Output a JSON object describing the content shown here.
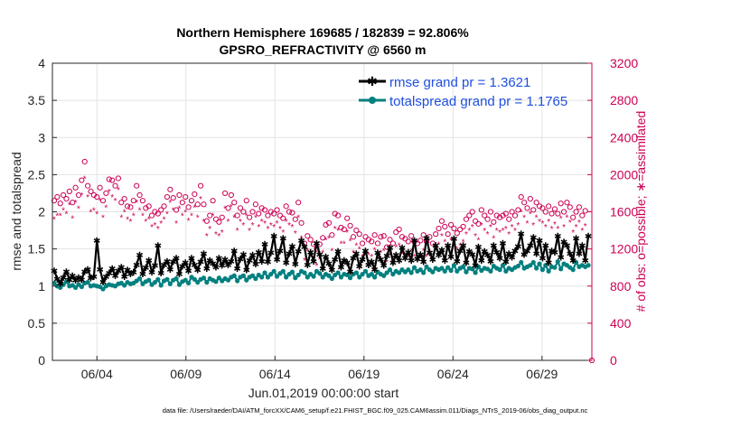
{
  "chart_data": {
    "type": "line",
    "title_line1": "Northern Hemisphere 169685 / 182839 = 92.806%",
    "title_line2": "GPSRO_REFRACTIVITY @ 6560 m",
    "xlabel": "Jun.01,2019 00:00:00 start",
    "ylabel_left": "rmse and totalspread",
    "ylabel_right": "# of obs: o=possible; ∗=assimilated",
    "footer": "data file: /Users/raeder/DAI/ATM_forcXX/CAM6_setup/f.e21.FHIST_BGC.f09_025.CAM6assim.011/Diags_NTrS_2019-06/obs_diag_output.nc",
    "xlim": [
      1.5,
      31.8
    ],
    "ylim_left": [
      0,
      4
    ],
    "ylim_right": [
      0,
      3200
    ],
    "x_tick_values": [
      4,
      9,
      14,
      19,
      24,
      29
    ],
    "x_tick_labels": [
      "06/04",
      "06/09",
      "06/14",
      "06/19",
      "06/24",
      "06/29"
    ],
    "y_tick_left": [
      "0",
      "0.5",
      "1",
      "1.5",
      "2",
      "2.5",
      "3",
      "3.5",
      "4"
    ],
    "y_tick_right": [
      "0",
      "400",
      "800",
      "1200",
      "1600",
      "2000",
      "2400",
      "2800",
      "3200"
    ],
    "colors": {
      "rmse": "#000000",
      "spread": "#00807f",
      "obs": "#cc0055",
      "legend_text": "#1f4fe0"
    },
    "series": [
      {
        "name": "rmse grand pr = 1.3621",
        "axis": "left",
        "values": [
          1.21,
          1.1,
          1.04,
          1.12,
          1.2,
          1.09,
          1.14,
          1.08,
          1.12,
          1.09,
          1.2,
          1.23,
          1.11,
          1.13,
          1.62,
          1.23,
          1.06,
          1.13,
          1.18,
          1.24,
          1.14,
          1.21,
          1.26,
          1.13,
          1.22,
          1.17,
          1.19,
          1.29,
          1.42,
          1.17,
          1.25,
          1.35,
          1.19,
          1.28,
          1.55,
          1.18,
          1.29,
          1.34,
          1.23,
          1.33,
          1.38,
          1.17,
          1.27,
          1.32,
          1.21,
          1.38,
          1.29,
          1.22,
          1.33,
          1.44,
          1.24,
          1.35,
          1.31,
          1.26,
          1.38,
          1.28,
          1.36,
          1.29,
          1.34,
          1.48,
          1.24,
          1.37,
          1.43,
          1.22,
          1.35,
          1.42,
          1.3,
          1.46,
          1.34,
          1.57,
          1.33,
          1.45,
          1.68,
          1.36,
          1.48,
          1.65,
          1.32,
          1.44,
          1.54,
          1.3,
          1.47,
          1.62,
          1.53,
          1.29,
          1.46,
          1.34,
          1.58,
          1.43,
          1.24,
          1.4,
          1.31,
          1.22,
          1.36,
          1.47,
          1.26,
          1.35,
          1.32,
          1.2,
          1.38,
          1.44,
          1.27,
          1.36,
          1.48,
          1.29,
          1.33,
          1.23,
          1.45,
          1.36,
          1.28,
          1.41,
          1.52,
          1.32,
          1.42,
          1.35,
          1.52,
          1.38,
          1.46,
          1.35,
          1.62,
          1.37,
          1.43,
          1.33,
          1.65,
          1.45,
          1.36,
          1.55,
          1.42,
          1.49,
          1.35,
          1.55,
          1.4,
          1.64,
          1.34,
          1.48,
          1.55,
          1.32,
          1.47,
          1.43,
          1.28,
          1.53,
          1.35,
          1.47,
          1.42,
          1.34,
          1.55,
          1.46,
          1.38,
          1.58,
          1.33,
          1.44,
          1.39,
          1.48,
          1.54,
          1.71,
          1.43,
          1.48,
          1.55,
          1.66,
          1.44,
          1.62,
          1.38,
          1.55,
          1.32,
          1.48,
          1.46,
          1.68,
          1.39,
          1.6,
          1.55,
          1.44,
          1.35,
          1.65,
          1.44,
          1.55,
          1.35,
          1.68
        ]
      },
      {
        "name": "totalspread grand pr = 1.1765",
        "axis": "left",
        "values": [
          1.04,
          1.0,
          0.98,
          1.02,
          1.06,
          1.0,
          1.01,
          0.98,
          1.02,
          0.99,
          1.04,
          1.05,
          1.0,
          1.01,
          1.0,
          0.99,
          0.96,
          1.0,
          1.02,
          1.01,
          1.0,
          1.03,
          1.04,
          1.01,
          1.05,
          1.03,
          1.04,
          1.07,
          1.1,
          1.03,
          1.06,
          1.08,
          1.02,
          1.05,
          1.09,
          1.01,
          1.07,
          1.09,
          1.03,
          1.08,
          1.1,
          1.02,
          1.06,
          1.08,
          1.04,
          1.12,
          1.09,
          1.05,
          1.09,
          1.11,
          1.05,
          1.1,
          1.08,
          1.06,
          1.11,
          1.07,
          1.1,
          1.08,
          1.12,
          1.14,
          1.07,
          1.12,
          1.14,
          1.08,
          1.12,
          1.14,
          1.1,
          1.15,
          1.12,
          1.18,
          1.12,
          1.16,
          1.2,
          1.13,
          1.17,
          1.2,
          1.12,
          1.16,
          1.19,
          1.11,
          1.15,
          1.2,
          1.18,
          1.12,
          1.16,
          1.13,
          1.2,
          1.17,
          1.12,
          1.16,
          1.14,
          1.1,
          1.15,
          1.18,
          1.12,
          1.16,
          1.15,
          1.11,
          1.16,
          1.18,
          1.12,
          1.16,
          1.2,
          1.14,
          1.16,
          1.12,
          1.19,
          1.16,
          1.14,
          1.18,
          1.22,
          1.16,
          1.2,
          1.18,
          1.22,
          1.19,
          1.22,
          1.18,
          1.25,
          1.2,
          1.22,
          1.18,
          1.26,
          1.22,
          1.19,
          1.24,
          1.22,
          1.24,
          1.2,
          1.25,
          1.21,
          1.28,
          1.2,
          1.24,
          1.26,
          1.19,
          1.24,
          1.23,
          1.18,
          1.26,
          1.21,
          1.24,
          1.23,
          1.2,
          1.27,
          1.24,
          1.22,
          1.28,
          1.2,
          1.24,
          1.22,
          1.25,
          1.27,
          1.32,
          1.24,
          1.26,
          1.28,
          1.32,
          1.24,
          1.3,
          1.22,
          1.28,
          1.2,
          1.26,
          1.25,
          1.33,
          1.23,
          1.3,
          1.28,
          1.25,
          1.22,
          1.32,
          1.26,
          1.28,
          1.26,
          1.28
        ]
      },
      {
        "name": "possible",
        "axis": "right",
        "marker": "o",
        "values": [
          1720,
          1760,
          1690,
          1780,
          1740,
          1820,
          1700,
          1860,
          1780,
          1940,
          2140,
          1880,
          1820,
          1780,
          1760,
          1860,
          1720,
          1800,
          1950,
          1940,
          1880,
          1960,
          1700,
          1740,
          1660,
          1650,
          1720,
          1880,
          1780,
          1720,
          1640,
          1660,
          1560,
          1600,
          1580,
          1620,
          1660,
          1760,
          1840,
          1750,
          1620,
          1780,
          1700,
          1760,
          1650,
          1720,
          1790,
          1680,
          1880,
          1680,
          1500,
          1560,
          1720,
          1520,
          1490,
          1540,
          1800,
          1640,
          1780,
          1700,
          1560,
          1640,
          1600,
          1720,
          1540,
          1600,
          1680,
          1580,
          1640,
          1620,
          1560,
          1600,
          1580,
          1620,
          1560,
          1530,
          1660,
          1600,
          1590,
          1520,
          1700,
          1480,
          1260,
          1340,
          1300,
          1250,
          1200,
          1250,
          1320,
          1460,
          1480,
          1350,
          1580,
          1560,
          1430,
          1410,
          1530,
          1450,
          1330,
          1400,
          1360,
          1260,
          1330,
          1300,
          1280,
          1350,
          1260,
          1330,
          1340,
          1220,
          1300,
          1260,
          1380,
          1410,
          1330,
          1310,
          1280,
          1340,
          1280,
          1260,
          1290,
          1350,
          1280,
          1330,
          1260,
          1360,
          1420,
          1500,
          1440,
          1360,
          1460,
          1420,
          1370,
          1410,
          1440,
          1520,
          1560,
          1600,
          1500,
          1470,
          1620,
          1560,
          1520,
          1600,
          1490,
          1560,
          1540,
          1560,
          1580,
          1520,
          1600,
          1560,
          1620,
          1760,
          1700,
          1640,
          1740,
          1620,
          1700,
          1660,
          1640,
          1600,
          1660,
          1580,
          1630,
          1580,
          1690,
          1600,
          1700,
          1650,
          1540,
          1600,
          1650,
          1560,
          1610
        ]
      },
      {
        "name": "assimilated",
        "axis": "right",
        "marker": "*",
        "values": [
          1520,
          1560,
          1560,
          1620,
          1580,
          1680,
          1530,
          1700,
          1640,
          1780,
          1960,
          1760,
          1600,
          1620,
          1580,
          1720,
          1540,
          1650,
          1820,
          1760,
          1720,
          1840,
          1540,
          1600,
          1520,
          1500,
          1560,
          1700,
          1620,
          1560,
          1500,
          1520,
          1440,
          1460,
          1420,
          1480,
          1520,
          1580,
          1700,
          1620,
          1480,
          1640,
          1560,
          1600,
          1510,
          1560,
          1650,
          1540,
          1740,
          1500,
          1340,
          1420,
          1560,
          1360,
          1340,
          1380,
          1640,
          1500,
          1660,
          1540,
          1400,
          1500,
          1460,
          1560,
          1400,
          1460,
          1540,
          1440,
          1500,
          1480,
          1420,
          1460,
          1440,
          1480,
          1420,
          1380,
          1500,
          1460,
          1440,
          1370,
          1540,
          1320,
          1080,
          1180,
          1120,
          1090,
          1020,
          1090,
          1160,
          1300,
          1320,
          1180,
          1420,
          1400,
          1260,
          1260,
          1380,
          1290,
          1160,
          1240,
          1200,
          1120,
          1170,
          1140,
          1120,
          1190,
          1100,
          1160,
          1180,
          1060,
          1140,
          1100,
          1220,
          1240,
          1150,
          1140,
          1120,
          1180,
          1120,
          1080,
          1120,
          1180,
          1120,
          1160,
          1100,
          1180,
          1250,
          1340,
          1280,
          1200,
          1300,
          1260,
          1200,
          1240,
          1280,
          1360,
          1400,
          1440,
          1340,
          1300,
          1460,
          1400,
          1360,
          1440,
          1320,
          1400,
          1380,
          1400,
          1420,
          1360,
          1440,
          1400,
          1460,
          1600,
          1540,
          1480,
          1580,
          1460,
          1540,
          1500,
          1480,
          1440,
          1500,
          1420,
          1470,
          1420,
          1530,
          1440,
          1540,
          1490,
          1380,
          1440,
          1490,
          1400,
          1450
        ]
      }
    ],
    "legend_location": "top-right"
  }
}
